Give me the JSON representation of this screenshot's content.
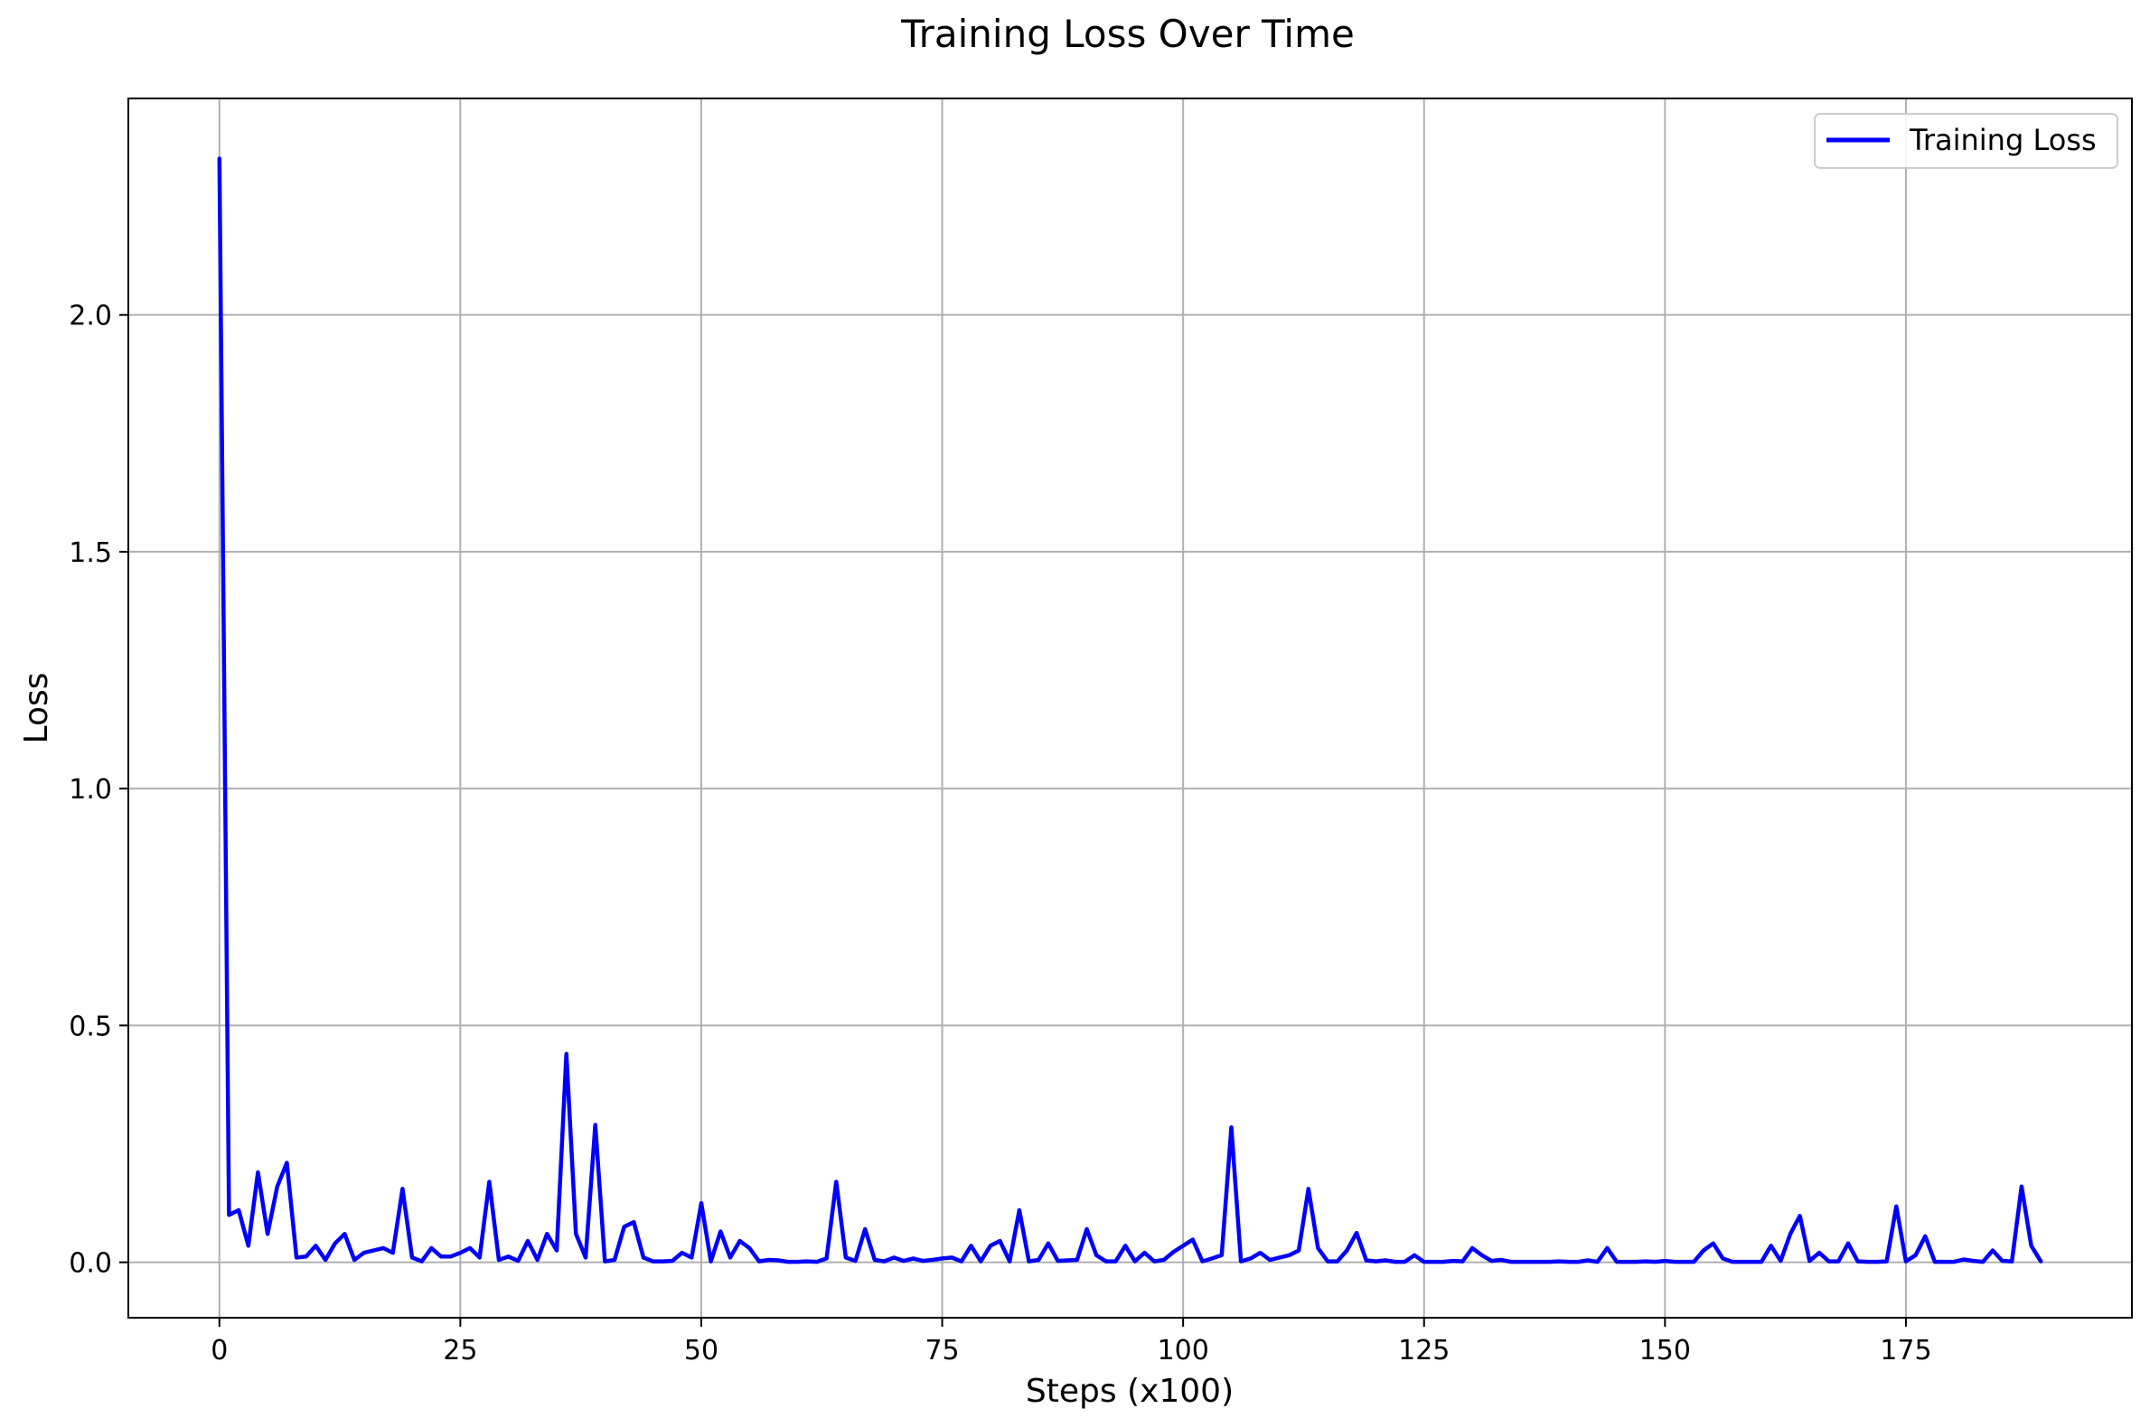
{
  "chart_data": {
    "type": "line",
    "title": "Training Loss Over Time",
    "xlabel": "Steps (x100)",
    "ylabel": "Loss",
    "xlim": [
      -9.45,
      198.45
    ],
    "ylim": [
      -0.117,
      2.457
    ],
    "xticks": [
      0,
      25,
      50,
      75,
      100,
      125,
      150,
      175
    ],
    "xtick_labels": [
      "0",
      "25",
      "50",
      "75",
      "100",
      "125",
      "150",
      "175"
    ],
    "yticks": [
      0.0,
      0.5,
      1.0,
      1.5,
      2.0
    ],
    "ytick_labels": [
      "0.0",
      "0.5",
      "1.0",
      "1.5",
      "2.0"
    ],
    "grid": true,
    "legend_position": "top-right",
    "series": [
      {
        "name": "Training Loss",
        "color": "#0000ff",
        "x": [
          0,
          1,
          2,
          3,
          4,
          5,
          6,
          7,
          8,
          9,
          10,
          11,
          12,
          13,
          14,
          15,
          16,
          17,
          18,
          19,
          20,
          21,
          22,
          23,
          24,
          25,
          26,
          27,
          28,
          29,
          30,
          31,
          32,
          33,
          34,
          35,
          36,
          37,
          38,
          39,
          40,
          41,
          42,
          43,
          44,
          45,
          46,
          47,
          48,
          49,
          50,
          51,
          52,
          53,
          54,
          55,
          56,
          57,
          58,
          59,
          60,
          61,
          62,
          63,
          64,
          65,
          66,
          67,
          68,
          69,
          70,
          71,
          72,
          73,
          74,
          75,
          76,
          77,
          78,
          79,
          80,
          81,
          82,
          83,
          84,
          85,
          86,
          87,
          88,
          89,
          90,
          91,
          92,
          93,
          94,
          95,
          96,
          97,
          98,
          99,
          100,
          101,
          102,
          103,
          104,
          105,
          106,
          107,
          108,
          109,
          110,
          111,
          112,
          113,
          114,
          115,
          116,
          117,
          118,
          119,
          120,
          121,
          122,
          123,
          124,
          125,
          126,
          127,
          128,
          129,
          130,
          131,
          132,
          133,
          134,
          135,
          136,
          137,
          138,
          139,
          140,
          141,
          142,
          143,
          144,
          145,
          146,
          147,
          148,
          149,
          150,
          151,
          152,
          153,
          154,
          155,
          156,
          157,
          158,
          159,
          160,
          161,
          162,
          163,
          164,
          165,
          166,
          167,
          168,
          169,
          170,
          171,
          172,
          173,
          174,
          175,
          176,
          177,
          178,
          179,
          180,
          181,
          182,
          183,
          184,
          185,
          186,
          187,
          188,
          189
        ],
        "y": [
          2.33,
          0.1,
          0.11,
          0.035,
          0.19,
          0.06,
          0.16,
          0.21,
          0.01,
          0.012,
          0.035,
          0.005,
          0.04,
          0.06,
          0.005,
          0.02,
          0.025,
          0.03,
          0.02,
          0.155,
          0.01,
          0.002,
          0.03,
          0.012,
          0.012,
          0.02,
          0.03,
          0.01,
          0.17,
          0.005,
          0.012,
          0.003,
          0.045,
          0.005,
          0.06,
          0.025,
          0.44,
          0.06,
          0.01,
          0.29,
          0.002,
          0.005,
          0.075,
          0.085,
          0.01,
          0.002,
          0.002,
          0.003,
          0.02,
          0.01,
          0.125,
          0.002,
          0.065,
          0.01,
          0.045,
          0.03,
          0.002,
          0.005,
          0.004,
          0.001,
          0.001,
          0.002,
          0.001,
          0.008,
          0.17,
          0.01,
          0.003,
          0.07,
          0.005,
          0.002,
          0.01,
          0.003,
          0.008,
          0.003,
          0.005,
          0.008,
          0.01,
          0.002,
          0.035,
          0.002,
          0.035,
          0.045,
          0.002,
          0.11,
          0.002,
          0.005,
          0.04,
          0.003,
          0.004,
          0.005,
          0.07,
          0.015,
          0.002,
          0.002,
          0.035,
          0.002,
          0.02,
          0.002,
          0.005,
          0.022,
          0.035,
          0.048,
          0.002,
          0.008,
          0.015,
          0.285,
          0.002,
          0.008,
          0.02,
          0.005,
          0.01,
          0.015,
          0.025,
          0.155,
          0.03,
          0.002,
          0.002,
          0.025,
          0.062,
          0.004,
          0.002,
          0.004,
          0.001,
          0.001,
          0.015,
          0.001,
          0.001,
          0.001,
          0.003,
          0.002,
          0.03,
          0.015,
          0.003,
          0.005,
          0.001,
          0.001,
          0.001,
          0.001,
          0.001,
          0.002,
          0.001,
          0.001,
          0.004,
          0.001,
          0.03,
          0.001,
          0.001,
          0.001,
          0.002,
          0.001,
          0.003,
          0.001,
          0.001,
          0.001,
          0.025,
          0.04,
          0.008,
          0.001,
          0.001,
          0.001,
          0.001,
          0.035,
          0.003,
          0.06,
          0.098,
          0.003,
          0.02,
          0.002,
          0.002,
          0.04,
          0.002,
          0.001,
          0.001,
          0.002,
          0.118,
          0.002,
          0.015,
          0.055,
          0.001,
          0.001,
          0.001,
          0.006,
          0.003,
          0.001,
          0.025,
          0.003,
          0.002,
          0.16,
          0.035,
          0.002
        ]
      }
    ]
  }
}
